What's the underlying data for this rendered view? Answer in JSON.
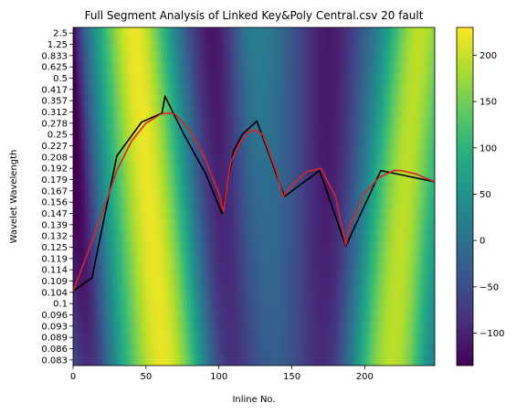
{
  "chart_data": {
    "type": "heatmap",
    "title": "Full Segment Analysis of Linked Key&Poly Central.csv 20 fault",
    "xlabel": "Inline No.",
    "ylabel": "Wavelet Wavelength",
    "xlim": [
      0,
      248
    ],
    "x_ticks": [
      0,
      50,
      100,
      150,
      200
    ],
    "y_tick_labels": [
      "2.5",
      "1.25",
      "0.833",
      "0.625",
      "0.5",
      "0.417",
      "0.357",
      "0.312",
      "0.278",
      "0.25",
      "0.227",
      "0.208",
      "0.192",
      "0.179",
      "0.167",
      "0.156",
      "0.147",
      "0.139",
      "0.132",
      "0.125",
      "0.119",
      "0.114",
      "0.109",
      "0.104",
      "0.1",
      "0.096",
      "0.093",
      "0.089",
      "0.086",
      "0.083"
    ],
    "colorbar": {
      "range": [
        -135,
        230
      ],
      "ticks": [
        -100,
        -50,
        0,
        50,
        100,
        150,
        200
      ],
      "colormap": "viridis"
    },
    "series": [
      {
        "color": "#000000",
        "x": [
          0,
          13,
          30,
          47,
          61,
          63,
          76,
          91,
          102,
          110,
          116,
          126,
          145,
          169,
          187,
          211,
          248
        ],
        "y_index": [
          22.9,
          21.7,
          10.9,
          7.9,
          7.1,
          5.6,
          9.0,
          12.5,
          16.0,
          10.5,
          9.0,
          7.8,
          14.5,
          12.2,
          18.9,
          12.2,
          13.2
        ]
      },
      {
        "color": "#d62728",
        "x": [
          0,
          10,
          20,
          30,
          40,
          50,
          60,
          65,
          70,
          80,
          90,
          100,
          103,
          108,
          114,
          120,
          125,
          130,
          140,
          144,
          150,
          160,
          170,
          180,
          187,
          190,
          200,
          210,
          220,
          225,
          235,
          248
        ],
        "y_index": [
          22.9,
          19.5,
          16.0,
          12.2,
          9.6,
          8.0,
          7.2,
          7.1,
          7.2,
          8.6,
          11.0,
          14.2,
          15.8,
          11.5,
          9.8,
          8.8,
          8.6,
          9.0,
          12.5,
          14.5,
          13.5,
          12.3,
          12.0,
          14.5,
          18.8,
          17.0,
          14.2,
          12.8,
          12.2,
          12.2,
          12.5,
          13.2
        ]
      }
    ]
  }
}
